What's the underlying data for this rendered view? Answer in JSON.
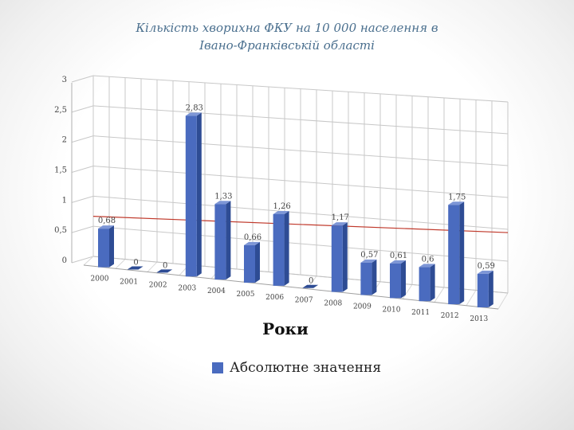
{
  "slide": {
    "title_line1": "Кількість хворихна ФКУ на 10 000 населення в",
    "title_line2": "Івано-Франківській області"
  },
  "chart_data": {
    "type": "bar",
    "categories": [
      "2000",
      "2001",
      "2002",
      "2003",
      "2004",
      "2005",
      "2006",
      "2007",
      "2008",
      "2009",
      "2010",
      "2011",
      "2012",
      "2013"
    ],
    "series": [
      {
        "name": "Абсолютне значення",
        "values": [
          0.68,
          0,
          0,
          2.83,
          1.33,
          0.66,
          1.26,
          0,
          1.17,
          0.57,
          0.61,
          0.6,
          1.75,
          0.59
        ],
        "value_labels": [
          "0,68",
          "0",
          "0",
          "2,83",
          "1,33",
          "0,66",
          "1,26",
          "0",
          "1,17",
          "0,57",
          "0,61",
          "0,6",
          "1,75",
          "0,59"
        ],
        "color": "#4a6bbf"
      }
    ],
    "trendline": {
      "type": "linear",
      "color": "#c0392b"
    },
    "y_ticks": [
      "3",
      "2,5",
      "2",
      "1,5",
      "1",
      "0,5",
      "0"
    ],
    "ylim": [
      0,
      3
    ],
    "xlabel": "Роки",
    "ylabel": "",
    "grid": true,
    "projection": "3d",
    "legend_position": "bottom"
  }
}
